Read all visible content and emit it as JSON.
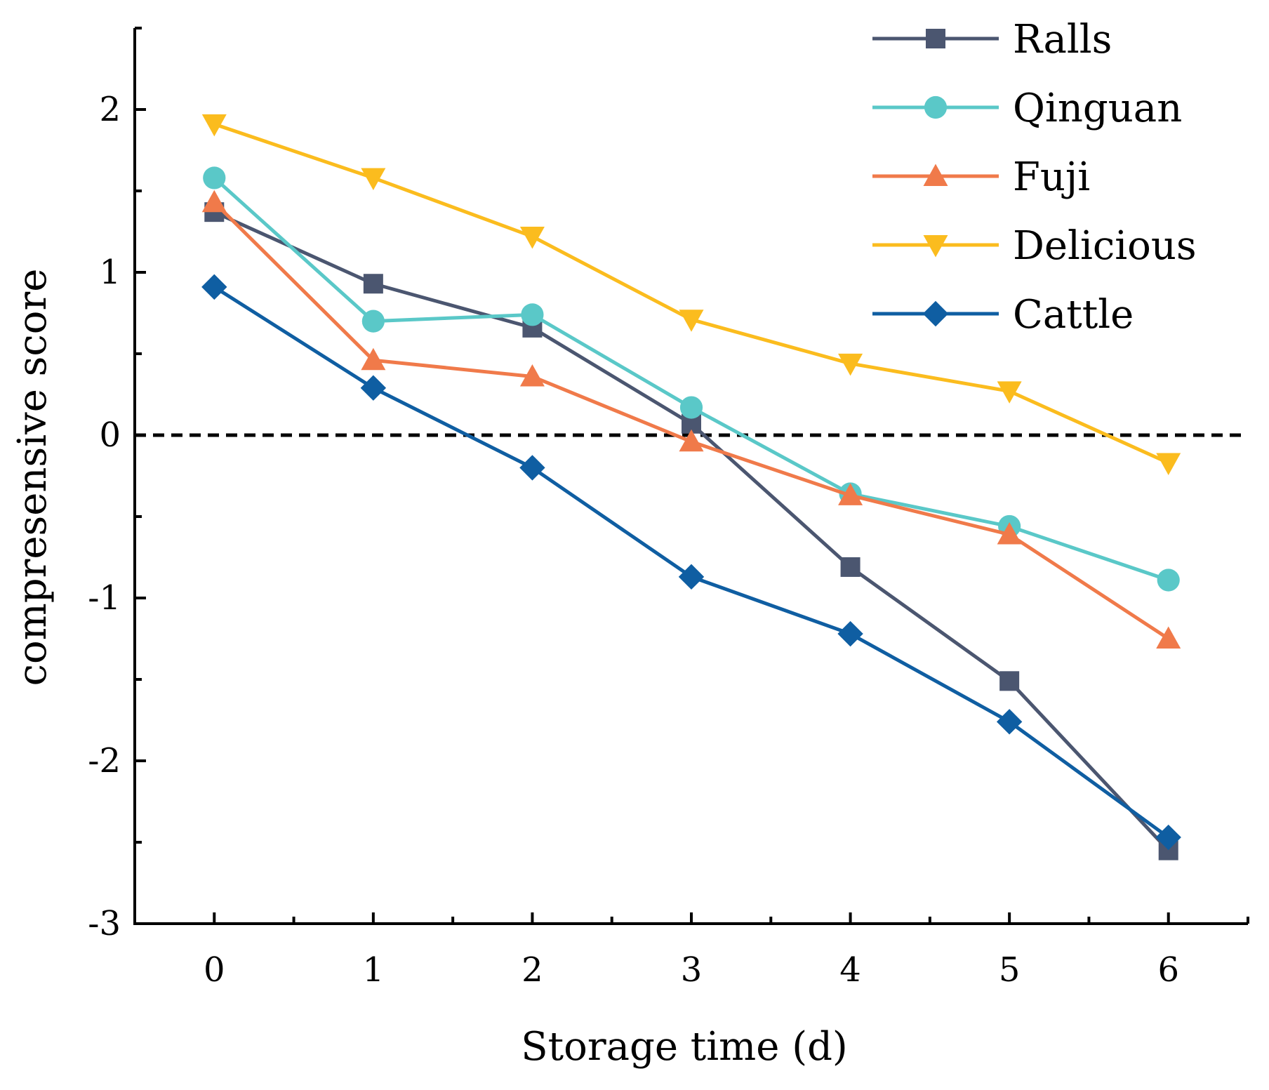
{
  "chart_data": {
    "type": "line",
    "title": "",
    "xlabel": "Storage time (d)",
    "ylabel": "compresensive score",
    "x": [
      0,
      1,
      2,
      3,
      4,
      5,
      6
    ],
    "xlim": [
      -0.5,
      6.5
    ],
    "ylim": [
      -3,
      2.5
    ],
    "yticks": [
      -3,
      -2,
      -1,
      0,
      1,
      2
    ],
    "xticks": [
      0,
      1,
      2,
      3,
      4,
      5,
      6
    ],
    "reference_line": {
      "y": 0,
      "style": "dashed",
      "color": "#000000"
    },
    "legend_position": "top-right",
    "series": [
      {
        "name": "Ralls",
        "color": "#4b5670",
        "marker": "square",
        "values": [
          1.37,
          0.93,
          0.66,
          0.07,
          -0.81,
          -1.51,
          -2.55
        ]
      },
      {
        "name": "Qinguan",
        "color": "#5ac8c8",
        "marker": "circle",
        "values": [
          1.58,
          0.7,
          0.74,
          0.17,
          -0.36,
          -0.56,
          -0.89
        ]
      },
      {
        "name": "Fuji",
        "color": "#f07a4a",
        "marker": "triangle-up",
        "values": [
          1.43,
          0.46,
          0.36,
          -0.04,
          -0.37,
          -0.61,
          -1.25
        ]
      },
      {
        "name": "Delicious",
        "color": "#fbbc1e",
        "marker": "triangle-down",
        "values": [
          1.91,
          1.58,
          1.22,
          0.71,
          0.44,
          0.27,
          -0.17
        ]
      },
      {
        "name": "Cattle",
        "color": "#0f5ea2",
        "marker": "diamond",
        "values": [
          0.91,
          0.29,
          -0.2,
          -0.87,
          -1.22,
          -1.76,
          -2.47
        ]
      }
    ]
  }
}
